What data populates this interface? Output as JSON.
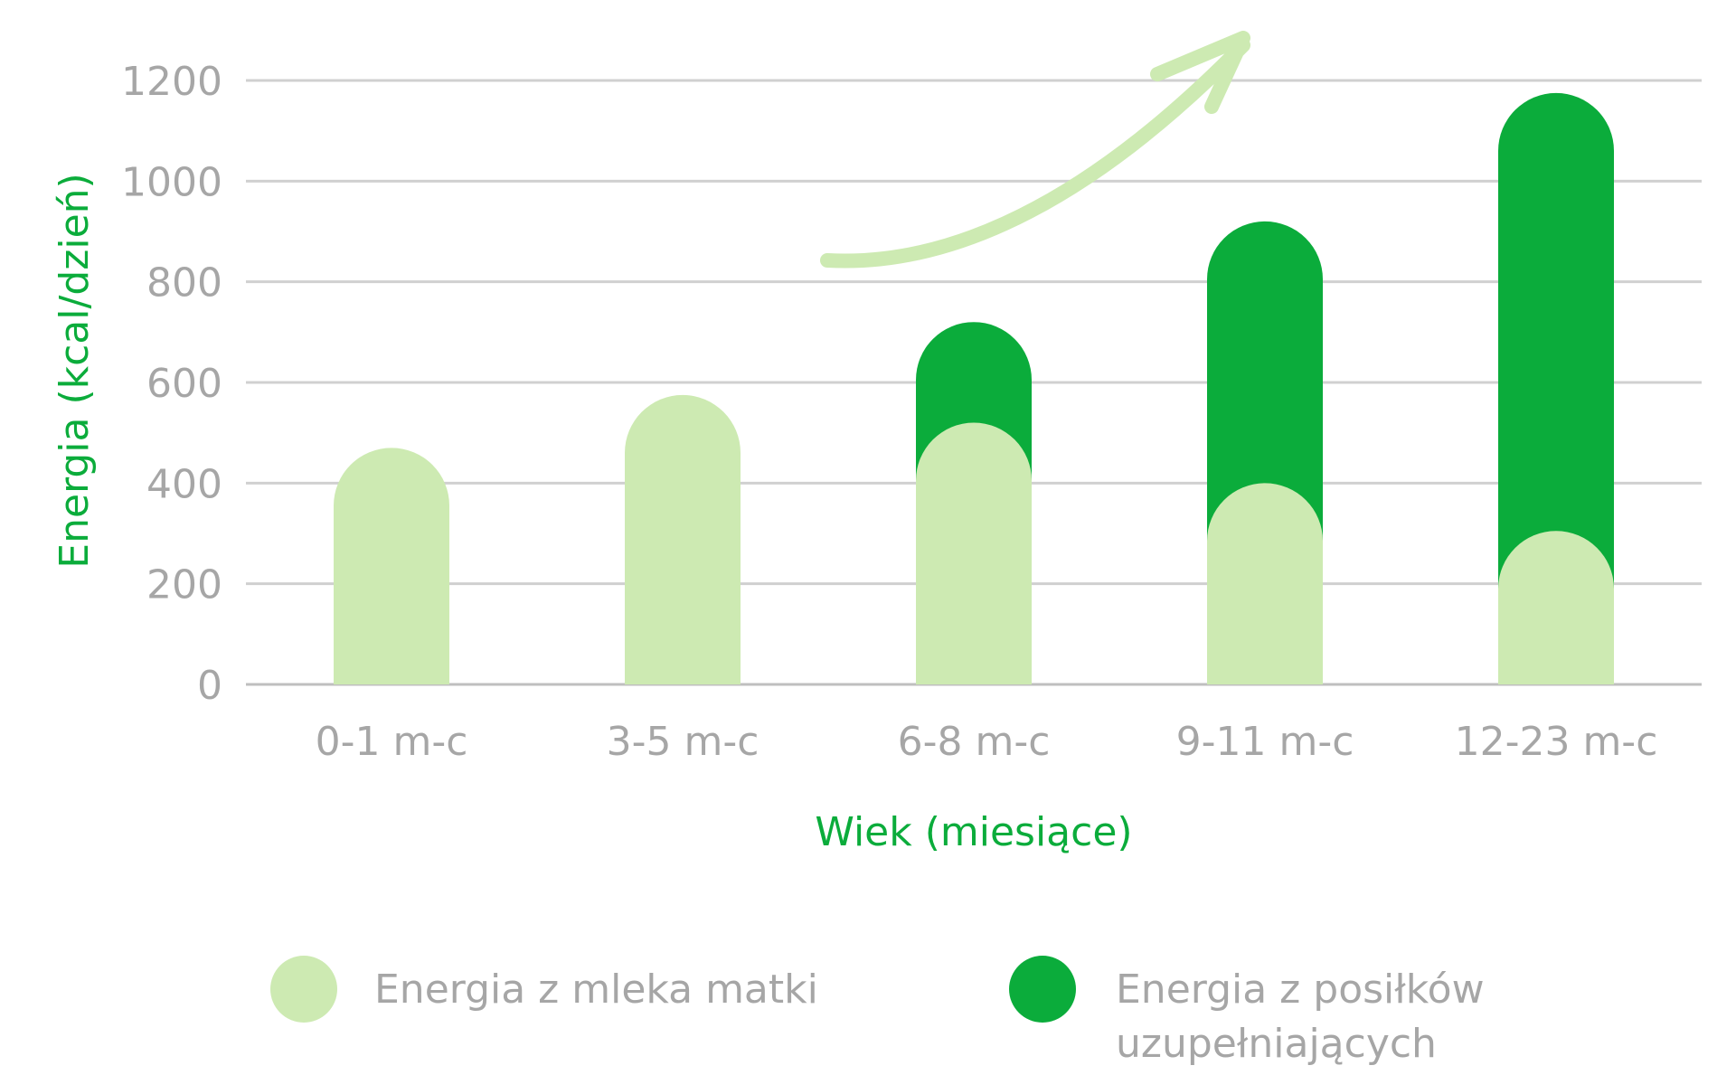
{
  "chart_data": {
    "type": "bar",
    "stacked": true,
    "categories": [
      "0-1 m-c",
      "3-5 m-c",
      "6-8 m-c",
      "9-11 m-c",
      "12-23 m-c"
    ],
    "series": [
      {
        "name": "Energia z mleka matki",
        "values": [
          470,
          575,
          520,
          400,
          305
        ],
        "color": "#cdeab2"
      },
      {
        "name": "Energia z posiłków uzupełniających",
        "values": [
          0,
          0,
          200,
          520,
          870
        ],
        "color": "#0bac3b"
      }
    ],
    "xlabel": "Wiek (miesiące)",
    "ylabel": "Energia (kcal/dzień)",
    "ylim": [
      0,
      1200
    ],
    "yticks": [
      "0",
      "200",
      "400",
      "600",
      "800",
      "1000",
      "1200"
    ],
    "grid": true,
    "legend_position": "bottom",
    "legend": {
      "item1": "Energia z mleka matki",
      "item2_line1": "Energia z posiłków",
      "item2_line2": "uzupełniających"
    },
    "annotation": "increasing-trend-arrow",
    "colors": {
      "axis_title": "#0bac3b",
      "text": "#a6a6a6",
      "grid": "#d0d0d0",
      "arrow": "#cdeab2"
    }
  }
}
